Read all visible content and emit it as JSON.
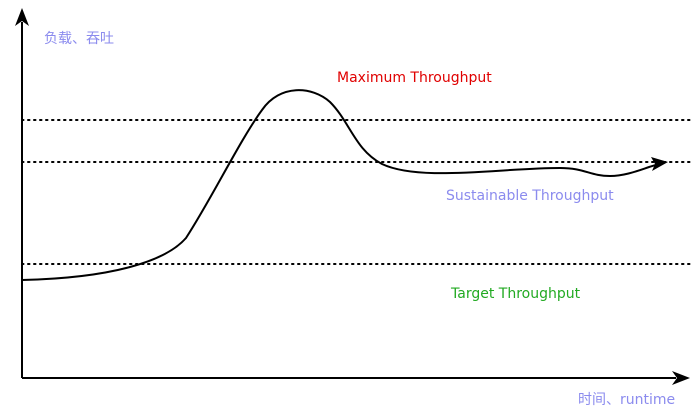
{
  "y_axis_label": "负载、吞吐",
  "x_axis_label": "时间、runtime",
  "levels": {
    "maximum": {
      "label": "Maximum Throughput",
      "color": "#e00000"
    },
    "sustainable": {
      "label": "Sustainable Throughput",
      "color": "#8b8bee"
    },
    "target": {
      "label": "Target Throughput",
      "color": "#22aa22"
    }
  },
  "colors": {
    "axis_label": "#8b8bee",
    "line": "#000000"
  }
}
